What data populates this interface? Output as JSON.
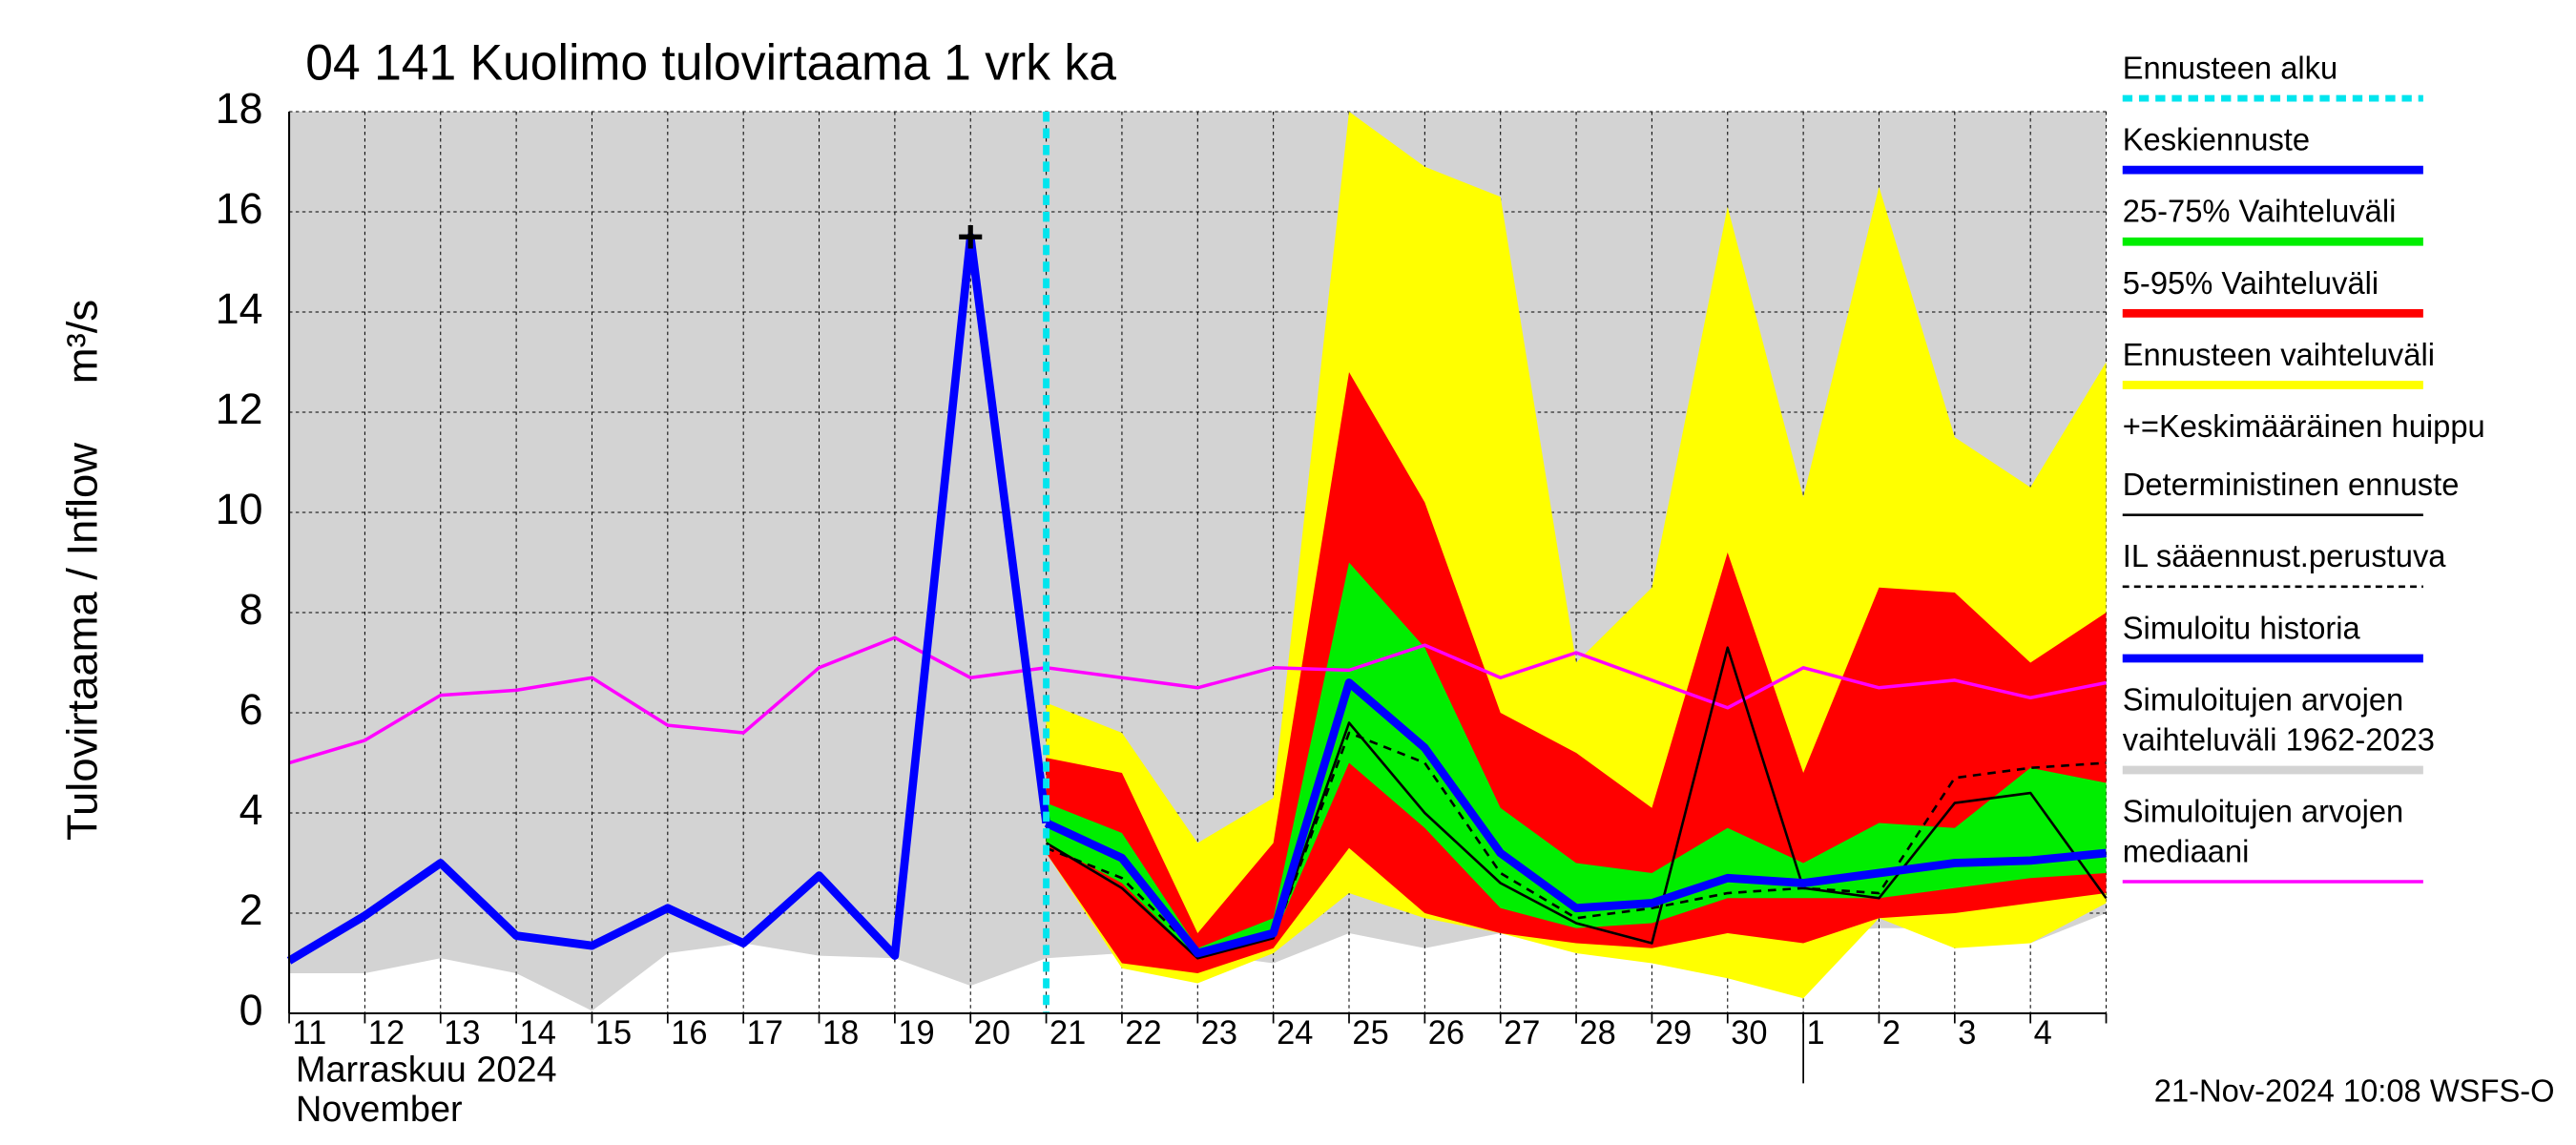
{
  "chart_data": {
    "type": "line",
    "title": "04 141 Kuolimo tulovirtaama 1 vrk ka",
    "y_label": "Tulovirtaama / Inflow",
    "y_unit": "m³/s",
    "x_label_lines": [
      "Marraskuu 2024",
      "November"
    ],
    "footer": "21-Nov-2024 10:08 WSFS-O",
    "categories": [
      "11",
      "12",
      "13",
      "14",
      "15",
      "16",
      "17",
      "18",
      "19",
      "20",
      "21",
      "22",
      "23",
      "24",
      "25",
      "26",
      "27",
      "28",
      "29",
      "30",
      "1",
      "2",
      "3",
      "4",
      null
    ],
    "month_break": 20,
    "ylim": [
      0,
      18
    ],
    "yticks": [
      0,
      2,
      4,
      6,
      8,
      10,
      12,
      14,
      16,
      18
    ],
    "grid": true,
    "series": [
      {
        "name": "Ennusteen alku",
        "kind": "vline",
        "color": "#00e5ee",
        "x": 10
      },
      {
        "name": "Keskiennuste",
        "kind": "line",
        "color": "#0000ff",
        "width": "thick",
        "values": [
          null,
          null,
          null,
          null,
          null,
          null,
          null,
          null,
          null,
          null,
          3.8,
          3.1,
          1.2,
          1.6,
          6.6,
          5.3,
          3.2,
          2.1,
          2.2,
          2.7,
          2.6,
          2.8,
          3.0,
          3.05,
          3.2
        ]
      },
      {
        "name": "25-75% Vaihteluväli",
        "kind": "band",
        "color": "#00ee00",
        "low": [
          null,
          null,
          null,
          null,
          null,
          null,
          null,
          null,
          null,
          null,
          3.4,
          2.6,
          1.1,
          1.5,
          5.0,
          3.7,
          2.1,
          1.7,
          1.8,
          2.3,
          2.3,
          2.3,
          2.5,
          2.7,
          2.8
        ],
        "high": [
          null,
          null,
          null,
          null,
          null,
          null,
          null,
          null,
          null,
          null,
          4.2,
          3.6,
          1.3,
          1.9,
          9.0,
          7.3,
          4.1,
          3.0,
          2.8,
          3.7,
          3.0,
          3.8,
          3.7,
          4.9,
          4.6
        ]
      },
      {
        "name": "5-95% Vaihteluväli",
        "kind": "band",
        "color": "#ff0000",
        "low": [
          null,
          null,
          null,
          null,
          null,
          null,
          null,
          null,
          null,
          null,
          3.2,
          1.0,
          0.8,
          1.3,
          3.3,
          2.0,
          1.6,
          1.4,
          1.3,
          1.6,
          1.4,
          1.9,
          2.0,
          2.2,
          2.4
        ],
        "high": [
          null,
          null,
          null,
          null,
          null,
          null,
          null,
          null,
          null,
          null,
          5.1,
          4.8,
          1.6,
          3.4,
          12.8,
          10.2,
          6.0,
          5.2,
          4.1,
          9.2,
          4.8,
          8.5,
          8.4,
          7.0,
          8.0
        ]
      },
      {
        "name": "Ennusteen vaihteluväli",
        "kind": "band",
        "color": "#ffff00",
        "low": [
          null,
          null,
          null,
          null,
          null,
          null,
          null,
          null,
          null,
          null,
          3.2,
          0.9,
          0.6,
          1.2,
          2.4,
          1.9,
          1.6,
          1.2,
          1.0,
          0.7,
          0.3,
          1.9,
          1.3,
          1.4,
          2.2
        ],
        "high": [
          null,
          null,
          null,
          null,
          null,
          null,
          null,
          null,
          null,
          null,
          6.2,
          5.6,
          3.4,
          4.3,
          18,
          16.9,
          16.3,
          7.0,
          8.5,
          16.1,
          10.3,
          16.5,
          11.5,
          10.5,
          13.0
        ]
      },
      {
        "name": "+=Keskimääräinen huippu",
        "kind": "marker",
        "color": "#000000",
        "x": 9,
        "value": 15.5
      },
      {
        "name": "Deterministinen ennuste",
        "kind": "line",
        "color": "#000000",
        "width": "thin",
        "values": [
          null,
          null,
          null,
          null,
          null,
          null,
          null,
          null,
          null,
          null,
          3.4,
          2.5,
          1.1,
          1.5,
          5.8,
          4.0,
          2.6,
          1.8,
          1.4,
          7.3,
          2.5,
          2.3,
          4.2,
          4.4,
          2.3
        ]
      },
      {
        "name": "IL sääennust.perustuva",
        "kind": "line",
        "color": "#000000",
        "width": "thin",
        "dashed": true,
        "values": [
          null,
          null,
          null,
          null,
          null,
          null,
          null,
          null,
          null,
          null,
          3.3,
          2.7,
          1.2,
          1.5,
          5.6,
          5.0,
          2.8,
          1.9,
          2.1,
          2.4,
          2.5,
          2.4,
          4.7,
          4.9,
          5.0
        ]
      },
      {
        "name": "Simuloitu historia",
        "kind": "line",
        "color": "#0000ff",
        "width": "thick",
        "values": [
          1.05,
          1.95,
          3.0,
          1.55,
          1.35,
          2.1,
          1.4,
          2.75,
          1.15,
          15.5,
          3.8,
          null,
          null,
          null,
          null,
          null,
          null,
          null,
          null,
          null,
          null,
          null,
          null,
          null,
          null
        ]
      },
      {
        "name": "Simuloitujen arvojen vaihteluväli 1962-2023",
        "kind": "band",
        "color": "#d3d3d3",
        "layer": "back",
        "low": [
          0.8,
          0.8,
          1.1,
          0.8,
          0.05,
          1.2,
          1.4,
          1.15,
          1.1,
          0.55,
          1.1,
          1.2,
          1.2,
          1.0,
          1.6,
          1.3,
          1.6,
          1.7,
          1.7,
          1.6,
          1.6,
          1.7,
          1.7,
          1.4,
          2.0
        ],
        "high": [
          18,
          18,
          18,
          18,
          18,
          18,
          18,
          18,
          18,
          18,
          18,
          18,
          18,
          18,
          18,
          18,
          18,
          18,
          18,
          18,
          18,
          18,
          18,
          18,
          18
        ]
      },
      {
        "name": "Simuloitujen arvojen mediaani",
        "kind": "line",
        "color": "#ff00ff",
        "width": "normal",
        "values": [
          5.0,
          5.45,
          6.35,
          6.45,
          6.7,
          5.75,
          5.6,
          6.9,
          7.5,
          6.7,
          6.9,
          6.7,
          6.5,
          6.9,
          6.85,
          7.35,
          6.7,
          7.2,
          6.65,
          6.1,
          6.9,
          6.5,
          6.65,
          6.3,
          6.6
        ]
      }
    ]
  }
}
